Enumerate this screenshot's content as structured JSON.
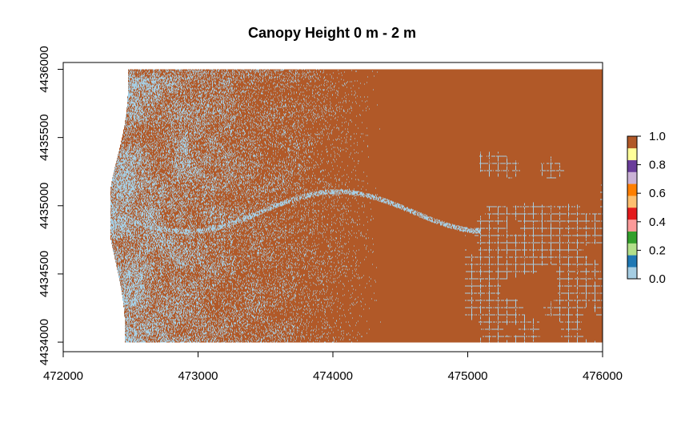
{
  "chart_data": {
    "type": "heatmap",
    "title": "Canopy Height 0 m - 2 m",
    "xlabel": "",
    "ylabel": "",
    "xlim": [
      472000,
      476000
    ],
    "ylim": [
      4433930,
      4436050
    ],
    "x_ticks": [
      "472000",
      "473000",
      "474000",
      "475000",
      "476000"
    ],
    "x_tick_values": [
      472000,
      473000,
      474000,
      475000,
      476000
    ],
    "y_ticks": [
      "4434000",
      "4434500",
      "4435000",
      "4435500",
      "4436000"
    ],
    "y_tick_values": [
      4434000,
      4434500,
      4435000,
      4435500,
      4436000
    ],
    "raster_extent": {
      "xmin": 472350,
      "xmax": 476000,
      "ymin": 4434000,
      "ymax": 4436000
    },
    "legend": {
      "position": "right",
      "tick_labels": [
        "1.0",
        "0.8",
        "0.6",
        "0.4",
        "0.2",
        "0.0"
      ],
      "tick_values": [
        1.0,
        0.8,
        0.6,
        0.4,
        0.2,
        0.0
      ],
      "colors_bottom_to_top": [
        "#A6CEE3",
        "#1F78B4",
        "#B2DF8A",
        "#33A02C",
        "#FB9A99",
        "#E31A1C",
        "#FDBF6F",
        "#FF7F00",
        "#CAB2D6",
        "#6A3D9A",
        "#FFFF99",
        "#B15928"
      ]
    },
    "value_colors": {
      "0": "#A6CEE3",
      "1": "#B15928"
    },
    "grid": false
  }
}
